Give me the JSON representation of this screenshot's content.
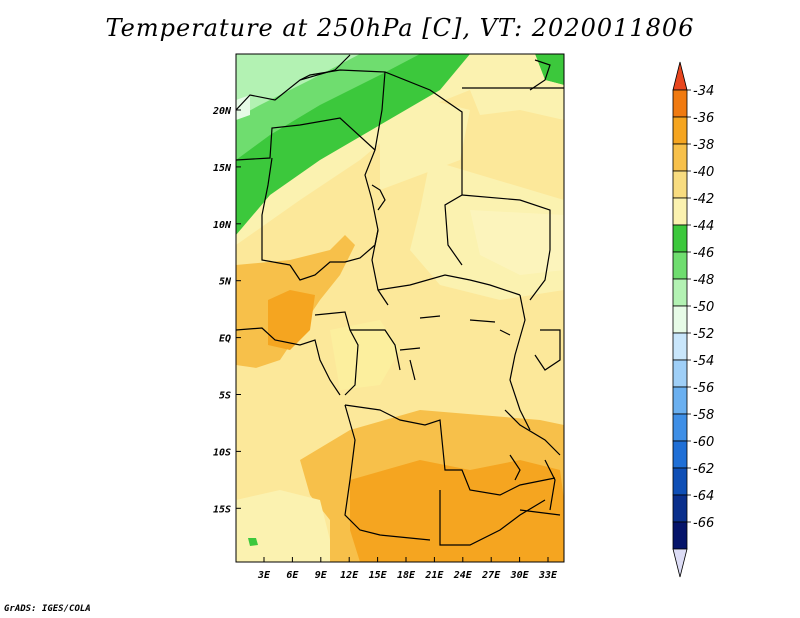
{
  "title": "Temperature at 250hPa [C], VT: 2020011806",
  "footer": "GrADS: IGES/COLA",
  "map": {
    "lat_labels": [
      "20N",
      "15N",
      "10N",
      "5N",
      "EQ",
      "5S",
      "10S",
      "15S"
    ],
    "lon_labels": [
      "3E",
      "6E",
      "9E",
      "12E",
      "15E",
      "18E",
      "21E",
      "24E",
      "27E",
      "30E",
      "33E"
    ]
  },
  "colorbar": {
    "labels": [
      "-34",
      "-36",
      "-38",
      "-40",
      "-42",
      "-44",
      "-46",
      "-48",
      "-50",
      "-52",
      "-54",
      "-56",
      "-58",
      "-60",
      "-62",
      "-64",
      "-66"
    ],
    "colors": [
      "#e8461e",
      "#f07a10",
      "#f5a520",
      "#f7c04a",
      "#f8dc80",
      "#fbf2b0",
      "#3cc83c",
      "#6fdd6f",
      "#b3f2b3",
      "#e7fbe7",
      "#c9e6fb",
      "#9fcff7",
      "#6bb0f0",
      "#3f8fe6",
      "#1f6fd6",
      "#0f4fb6",
      "#0a2f8c",
      "#05146a",
      "#dcdcf5"
    ]
  }
}
